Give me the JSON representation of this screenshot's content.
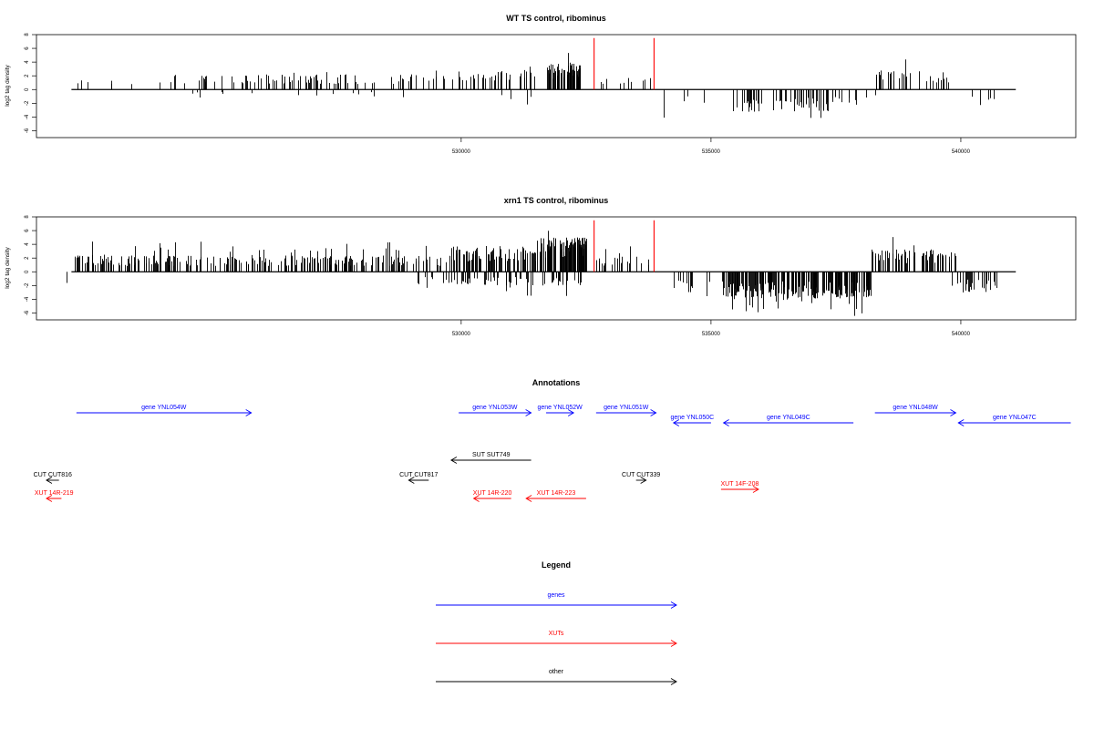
{
  "chart_data": [
    {
      "type": "bar",
      "title": "WT TS control, ribominus",
      "ylabel": "log2 tag density",
      "xlabel": "",
      "xlim": [
        521500,
        542300
      ],
      "ylim": [
        -7,
        8
      ],
      "x_ticks": [
        530000,
        535000,
        540000
      ],
      "y_ticks": [
        8,
        6,
        4,
        2,
        0,
        -2,
        -4,
        -6
      ],
      "highlight_lines": {
        "color": "#ff0000",
        "x": [
          532660,
          533860
        ],
        "height": 7.5
      },
      "series": [
        {
          "region": [
            522300,
            524000
          ],
          "sign": 1,
          "typ": 1.3,
          "max": 2.0,
          "density": 0.008
        },
        {
          "region": [
            524100,
            529700
          ],
          "sign": 1,
          "typ": 1.8,
          "max": 2.9,
          "density": 0.03
        },
        {
          "region": [
            529800,
            531500
          ],
          "sign": 1,
          "typ": 2.3,
          "max": 4.2,
          "density": 0.04
        },
        {
          "region": [
            531700,
            532400
          ],
          "sign": 1,
          "typ": 3.2,
          "max": 5.8,
          "density": 0.14
        },
        {
          "region": [
            532700,
            533900
          ],
          "sign": 1,
          "typ": 1.4,
          "max": 2.2,
          "density": 0.015
        },
        {
          "region": [
            524500,
            530700
          ],
          "sign": -1,
          "typ": 0.8,
          "max": 1.6,
          "density": 0.004
        },
        {
          "region": [
            530700,
            531500
          ],
          "sign": -1,
          "typ": 1.4,
          "max": 2.4,
          "density": 0.01
        },
        {
          "region": [
            533900,
            535100
          ],
          "sign": -1,
          "typ": 2.0,
          "max": 4.6,
          "density": 0.006
        },
        {
          "region": [
            535300,
            537400
          ],
          "sign": -1,
          "typ": 2.6,
          "max": 4.8,
          "density": 0.05
        },
        {
          "region": [
            537400,
            538300
          ],
          "sign": -1,
          "typ": 1.8,
          "max": 3.2,
          "density": 0.025
        },
        {
          "region": [
            538300,
            539800
          ],
          "sign": 1,
          "typ": 2.3,
          "max": 4.4,
          "density": 0.04
        },
        {
          "region": [
            539900,
            540800
          ],
          "sign": -1,
          "typ": 2.0,
          "max": 3.8,
          "density": 0.01
        }
      ]
    },
    {
      "type": "bar",
      "title": "xrn1 TS control, ribominus",
      "ylabel": "log2 tag density",
      "xlabel": "",
      "xlim": [
        521500,
        542300
      ],
      "ylim": [
        -7,
        8
      ],
      "x_ticks": [
        530000,
        535000,
        540000
      ],
      "y_ticks": [
        8,
        6,
        4,
        2,
        0,
        -2,
        -4,
        -6
      ],
      "highlight_lines": {
        "color": "#ff0000",
        "x": [
          532660,
          533860
        ],
        "height": 7.5
      },
      "series": [
        {
          "region": [
            522200,
            529800
          ],
          "sign": 1,
          "typ": 1.9,
          "max": 4.4,
          "density": 0.065
        },
        {
          "region": [
            529800,
            531600
          ],
          "sign": 1,
          "typ": 3.0,
          "max": 5.6,
          "density": 0.09
        },
        {
          "region": [
            531600,
            532500
          ],
          "sign": 1,
          "typ": 4.0,
          "max": 7.4,
          "density": 0.22
        },
        {
          "region": [
            532700,
            533900
          ],
          "sign": 1,
          "typ": 1.8,
          "max": 4.2,
          "density": 0.03
        },
        {
          "region": [
            522100,
            522200
          ],
          "sign": -1,
          "typ": 1.6,
          "max": 1.8,
          "density": 0.02
        },
        {
          "region": [
            529000,
            532400
          ],
          "sign": -1,
          "typ": 1.6,
          "max": 3.6,
          "density": 0.035
        },
        {
          "region": [
            533900,
            535000
          ],
          "sign": -1,
          "typ": 2.4,
          "max": 5.4,
          "density": 0.02
        },
        {
          "region": [
            535200,
            538200
          ],
          "sign": -1,
          "typ": 3.1,
          "max": 6.5,
          "density": 0.14
        },
        {
          "region": [
            538200,
            539900
          ],
          "sign": 1,
          "typ": 2.6,
          "max": 5.4,
          "density": 0.08
        },
        {
          "region": [
            539800,
            540800
          ],
          "sign": -1,
          "typ": 2.4,
          "max": 4.6,
          "density": 0.05
        }
      ]
    }
  ],
  "annotations": {
    "title": "Annotations",
    "items": [
      {
        "label": "gene YNL054W",
        "start": 522300,
        "end": 525800,
        "strand": "+",
        "color": "#0000ff",
        "track": 0,
        "label_side": "above"
      },
      {
        "label": "gene YNL053W",
        "start": 529950,
        "end": 531400,
        "strand": "+",
        "color": "#0000ff",
        "track": 0,
        "label_side": "above"
      },
      {
        "label": "gene YNL052W",
        "start": 531700,
        "end": 532250,
        "strand": "+",
        "color": "#0000ff",
        "track": 0,
        "label_side": "above"
      },
      {
        "label": "gene YNL051W",
        "start": 532700,
        "end": 533900,
        "strand": "+",
        "color": "#0000ff",
        "track": 0,
        "label_side": "above"
      },
      {
        "label": "gene YNL050C",
        "start": 534250,
        "end": 535000,
        "strand": "-",
        "color": "#0000ff",
        "track": 1,
        "label_side": "above"
      },
      {
        "label": "gene YNL049C",
        "start": 535250,
        "end": 537850,
        "strand": "-",
        "color": "#0000ff",
        "track": 1,
        "label_side": "above"
      },
      {
        "label": "gene YNL048W",
        "start": 538280,
        "end": 539900,
        "strand": "+",
        "color": "#0000ff",
        "track": 0,
        "label_side": "above"
      },
      {
        "label": "gene YNL047C",
        "start": 539950,
        "end": 542200,
        "strand": "-",
        "color": "#0000ff",
        "track": 1,
        "label_side": "above"
      },
      {
        "label": "SUT SUT749",
        "start": 529800,
        "end": 531400,
        "strand": "-",
        "color": "#000000",
        "track": 2,
        "label_side": "above"
      },
      {
        "label": "CUT CUT816",
        "start": 521700,
        "end": 521950,
        "strand": "-",
        "color": "#000000",
        "track": 3,
        "label_side": "above"
      },
      {
        "label": "CUT CUT817",
        "start": 528950,
        "end": 529350,
        "strand": "-",
        "color": "#000000",
        "track": 3,
        "label_side": "above"
      },
      {
        "label": "CUT CUT339",
        "start": 533500,
        "end": 533700,
        "strand": "+",
        "color": "#000000",
        "track": 3,
        "label_side": "above"
      },
      {
        "label": "XUT 14R-219",
        "start": 521700,
        "end": 522000,
        "strand": "-",
        "color": "#ff0000",
        "track": 4,
        "label_side": "above"
      },
      {
        "label": "XUT 14R-220",
        "start": 530250,
        "end": 531000,
        "strand": "-",
        "color": "#ff0000",
        "track": 4,
        "label_side": "above"
      },
      {
        "label": "XUT 14R-223",
        "start": 531300,
        "end": 532500,
        "strand": "-",
        "color": "#ff0000",
        "track": 4,
        "label_side": "above"
      },
      {
        "label": "XUT 14F-208",
        "start": 535200,
        "end": 535950,
        "strand": "+",
        "color": "#ff0000",
        "track": 3.5,
        "label_side": "above"
      }
    ]
  },
  "legend": {
    "title": "Legend",
    "entries": [
      {
        "label": "genes",
        "color": "#0000ff"
      },
      {
        "label": "XUTs",
        "color": "#ff0000"
      },
      {
        "label": "other",
        "color": "#000000"
      }
    ]
  }
}
